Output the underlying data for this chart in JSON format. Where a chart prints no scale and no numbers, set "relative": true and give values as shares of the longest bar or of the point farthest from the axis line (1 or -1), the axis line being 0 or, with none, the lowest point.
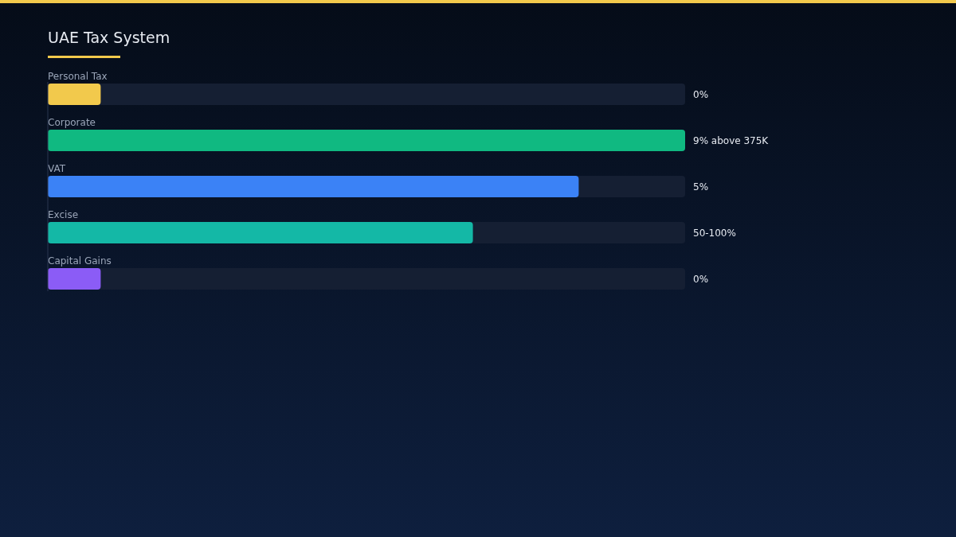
{
  "chart_data": {
    "type": "bar",
    "title": "UAE Tax System",
    "orientation": "horizontal",
    "relative": true,
    "categories": [
      "Personal Tax",
      "Corporate",
      "VAT",
      "Excise",
      "Capital Gains"
    ],
    "values": [
      0.083,
      1,
      0.833,
      0.667,
      0.083
    ],
    "colors": [
      "#f2c94c",
      "#10b981",
      "#3b82f6",
      "#14b8a6",
      "#8b5cf6"
    ],
    "annotations": [
      "0%",
      "9% above 375K",
      "5%",
      "50-100%",
      "0%"
    ]
  }
}
